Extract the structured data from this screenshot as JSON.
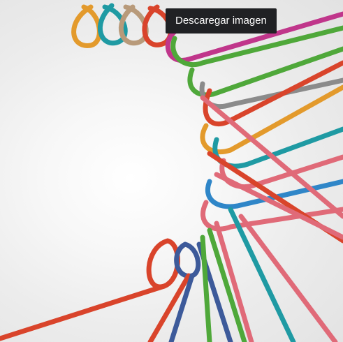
{
  "image": {
    "alt_icon": "rope-knot-illustration",
    "colors": {
      "red": "#d9442b",
      "pink": "#e06a78",
      "teal": "#1f9aa3",
      "blue": "#2f86c8",
      "green": "#4fa83a",
      "orange": "#e39a2c",
      "gray": "#8b8b8b",
      "navy": "#3d5a9a",
      "magenta": "#c0368b",
      "tan": "#b89a7a"
    }
  },
  "tooltip": {
    "label": "Descaregar imagen"
  }
}
